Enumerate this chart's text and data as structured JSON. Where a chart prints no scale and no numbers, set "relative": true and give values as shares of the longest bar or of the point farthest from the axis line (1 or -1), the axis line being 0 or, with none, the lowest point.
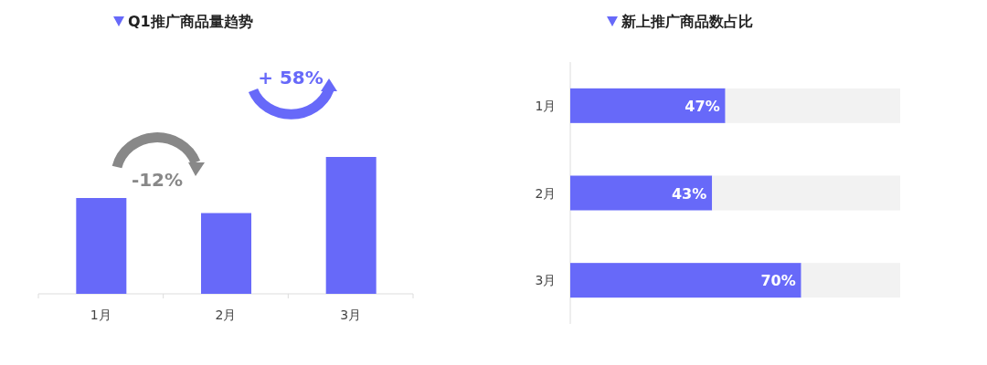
{
  "chart_data": [
    {
      "type": "bar",
      "title": "Q1推广商品量趋势",
      "categories": [
        "1月",
        "2月",
        "3月"
      ],
      "values": [
        0.7,
        0.59,
        1
      ],
      "relative": true,
      "color": "#6769f9",
      "annotations": [
        "-12%",
        "+ 58%"
      ]
    },
    {
      "type": "bar",
      "orientation": "horizontal",
      "stacked": true,
      "title": "新上推广商品数占比",
      "categories": [
        "1月",
        "2月",
        "3月"
      ],
      "xlim": [
        0,
        100
      ],
      "tick_labels": "y",
      "series": [
        {
          "color": "#6769f9",
          "values": [
            47,
            43,
            70
          ],
          "value_labels": [
            "47%",
            "43%",
            "70%"
          ]
        },
        {
          "color": "#f2f2f2",
          "values": [
            53,
            57,
            30
          ]
        }
      ]
    }
  ]
}
